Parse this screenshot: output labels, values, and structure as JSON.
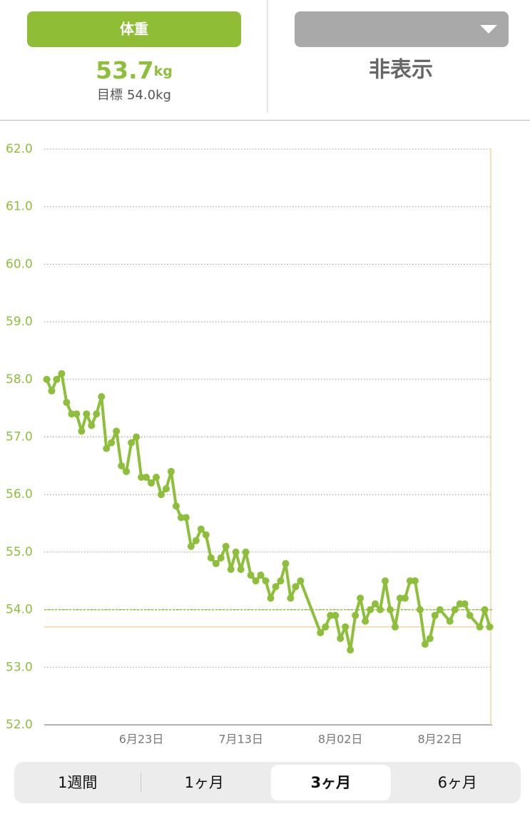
{
  "header": {
    "metric_button": "体重",
    "current_value": "53.7",
    "current_unit": "kg",
    "goal_label": "目標",
    "goal_value": "54.0kg",
    "dropdown_value": "非表示"
  },
  "chart_data": {
    "type": "line",
    "series": [
      {
        "color": "#8dbf3a",
        "x": [
          4,
          5,
          6,
          7,
          8,
          9,
          10,
          11,
          12,
          13,
          14,
          15,
          16,
          17,
          18,
          19,
          20,
          21,
          22,
          23,
          24,
          25,
          26,
          27,
          28,
          29,
          30,
          31,
          32,
          33,
          34,
          35,
          36,
          37,
          38,
          39,
          40,
          41,
          42,
          43,
          44,
          45,
          46,
          47,
          48,
          49,
          50,
          51,
          52,
          53,
          54,
          55,
          59,
          60,
          61,
          62,
          63,
          64,
          65,
          66,
          67,
          68,
          69,
          70,
          71,
          72,
          73,
          74,
          75,
          76,
          77,
          78,
          79,
          80,
          81,
          82,
          83,
          85,
          86,
          87,
          88,
          89,
          91,
          92,
          93
        ],
        "values": [
          58.0,
          57.8,
          58.0,
          58.1,
          57.6,
          57.4,
          57.4,
          57.1,
          57.4,
          57.2,
          57.4,
          57.7,
          56.8,
          56.9,
          57.1,
          56.5,
          56.4,
          56.9,
          57.0,
          56.3,
          56.3,
          56.2,
          56.3,
          56.0,
          56.1,
          56.4,
          55.8,
          55.6,
          55.6,
          55.1,
          55.2,
          55.4,
          55.3,
          54.9,
          54.8,
          54.9,
          55.1,
          54.7,
          55.0,
          54.7,
          55.0,
          54.6,
          54.5,
          54.6,
          54.5,
          54.2,
          54.4,
          54.5,
          54.8,
          54.2,
          54.4,
          54.5,
          53.6,
          53.7,
          53.9,
          53.9,
          53.5,
          53.7,
          53.3,
          53.9,
          54.2,
          53.8,
          54.0,
          54.1,
          54.0,
          54.5,
          54.0,
          53.7,
          54.2,
          54.2,
          54.5,
          54.5,
          54.0,
          53.4,
          53.5,
          53.9,
          54.0,
          53.8,
          54.0,
          54.1,
          54.1,
          53.9,
          53.7,
          54.0,
          53.7
        ]
      }
    ],
    "xlim": [
      3.5,
      93.5
    ],
    "xticks": [
      {
        "value": 23,
        "label": "6月23日"
      },
      {
        "value": 43,
        "label": "7月13日"
      },
      {
        "value": 63,
        "label": "8月02日"
      },
      {
        "value": 83,
        "label": "8月22日"
      }
    ],
    "ylim": [
      52,
      62
    ],
    "yticks": [
      {
        "value": 52,
        "label": "52.0"
      },
      {
        "value": 53,
        "label": "53.0"
      },
      {
        "value": 54,
        "label": "54.0"
      },
      {
        "value": 55,
        "label": "55.0"
      },
      {
        "value": 56,
        "label": "56.0"
      },
      {
        "value": 57,
        "label": "57.0"
      },
      {
        "value": 58,
        "label": "58.0"
      },
      {
        "value": 59,
        "label": "59.0"
      },
      {
        "value": 60,
        "label": "60.0"
      },
      {
        "value": 61,
        "label": "61.0"
      },
      {
        "value": 62,
        "label": "62.0"
      }
    ],
    "grid": true,
    "reference_lines": [
      {
        "value": 54,
        "color": "#8dbf3a",
        "style": "dashed"
      },
      {
        "value": 53.7,
        "color": "#f2d7a6",
        "style": "solid"
      }
    ]
  },
  "tabs": {
    "items": [
      "1週間",
      "1ヶ月",
      "3ヶ月",
      "6ヶ月"
    ],
    "selected": 2
  }
}
